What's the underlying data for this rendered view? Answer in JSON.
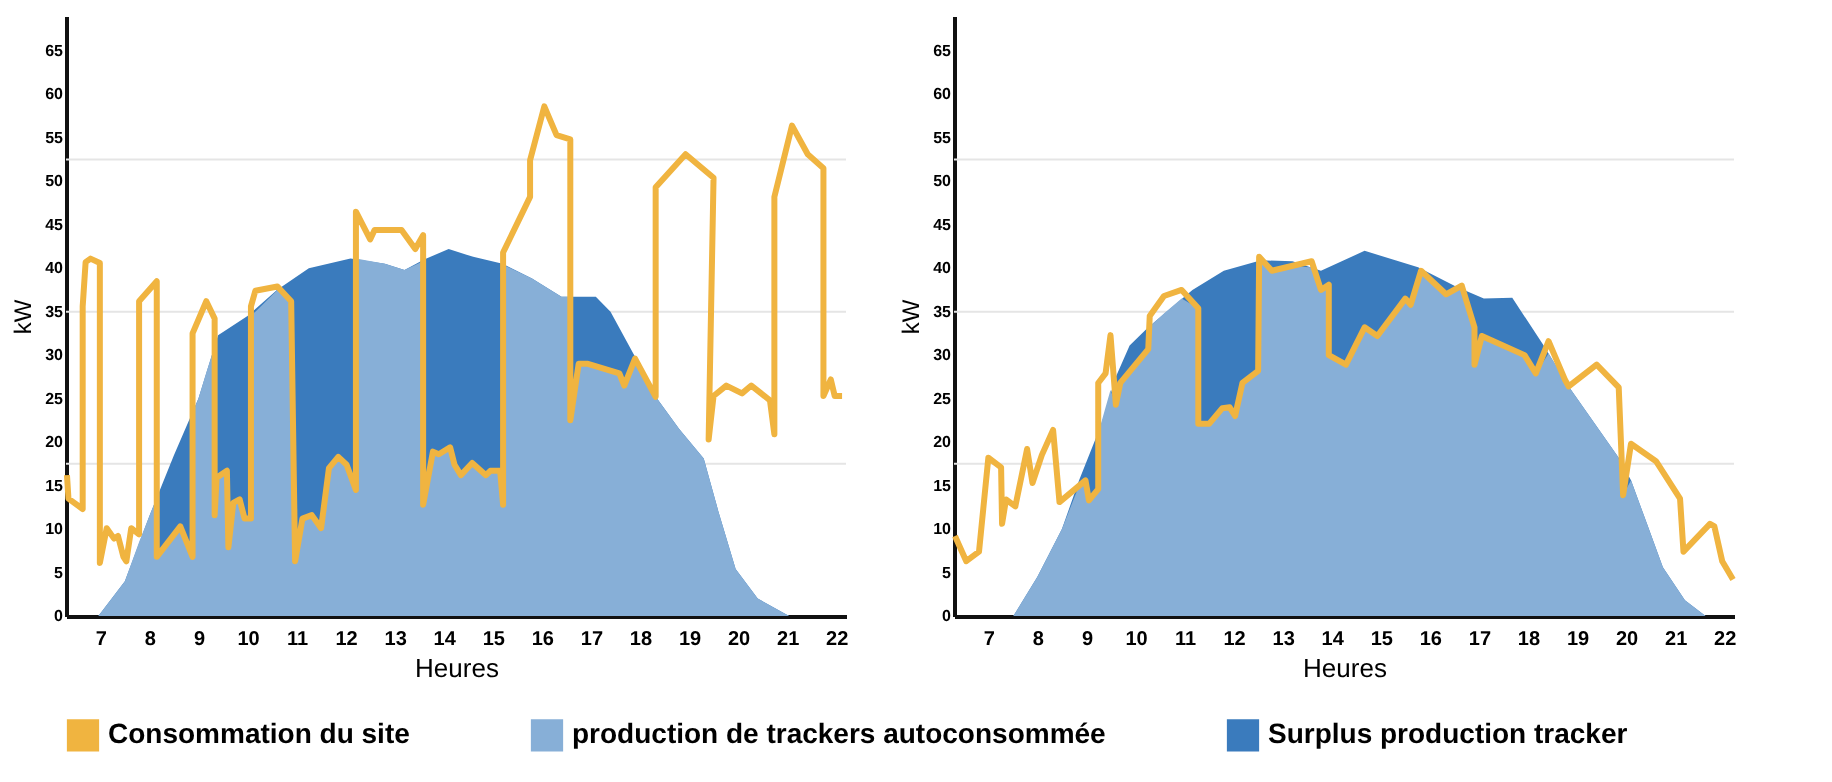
{
  "chart_data": [
    {
      "type": "area",
      "xlabel": "Heures",
      "ylabel": "kW",
      "xlim": [
        6.3,
        22.2
      ],
      "xticks": [
        7,
        8,
        9,
        10,
        11,
        12,
        13,
        14,
        15,
        16,
        17,
        18,
        19,
        20,
        21,
        22
      ],
      "ylim": [
        0,
        69
      ],
      "yticks": [
        0,
        5,
        10,
        15,
        20,
        25,
        30,
        35,
        40,
        45,
        50,
        55,
        60,
        65
      ],
      "grid": false,
      "legend": "bottom",
      "ref_lines": [
        {
          "axis": "y",
          "value": 17.5,
          "color": "#e5e5e5"
        },
        {
          "axis": "y",
          "value": 35,
          "color": "#e5e5e5"
        },
        {
          "axis": "y",
          "value": 52.5,
          "color": "#e5e5e5"
        }
      ],
      "series": [
        {
          "name": "Consommation du site",
          "type": "line",
          "color": "#f0b440",
          "x": [
            6.32,
            6.35,
            6.64,
            6.64,
            6.7,
            6.8,
            6.99,
            6.99,
            7.13,
            7.28,
            7.36,
            7.47,
            7.53,
            7.63,
            7.79,
            7.79,
            8.15,
            8.15,
            8.63,
            8.88,
            8.88,
            9.16,
            9.33,
            9.33,
            9.37,
            9.58,
            9.61,
            9.71,
            9.84,
            9.94,
            10.07,
            10.07,
            10.16,
            10.61,
            10.89,
            10.97,
            11.12,
            11.31,
            11.5,
            11.66,
            11.85,
            12.02,
            12.21,
            12.21,
            12.5,
            12.59,
            13.14,
            13.42,
            13.58,
            13.58,
            13.78,
            13.9,
            14.13,
            14.22,
            14.35,
            14.58,
            14.86,
            14.95,
            15.15,
            15.21,
            15.21,
            15.76,
            15.76,
            16.05,
            16.3,
            16.58,
            16.58,
            16.75,
            16.94,
            17.58,
            17.68,
            17.9,
            18.32,
            18.32,
            18.93,
            19.5,
            19.4,
            19.5,
            19.76,
            20.08,
            20.27,
            20.65,
            20.74,
            20.74,
            21.1,
            21.42,
            21.74,
            21.74,
            21.89,
            21.97,
            22.12
          ],
          "values": [
            16.2,
            13.5,
            12.3,
            35.6,
            40.7,
            41.1,
            40.6,
            6.1,
            10.1,
            8.9,
            9.2,
            6.8,
            6.3,
            10.1,
            9.4,
            36.2,
            38.5,
            6.8,
            10.3,
            6.8,
            32.5,
            36.2,
            34.2,
            11.6,
            15.9,
            16.7,
            7.9,
            13.0,
            13.4,
            11.2,
            11.2,
            35.6,
            37.4,
            37.9,
            36.2,
            6.3,
            11.2,
            11.6,
            10.1,
            17.0,
            18.3,
            17.4,
            14.5,
            46.5,
            43.3,
            44.4,
            44.4,
            42.2,
            43.8,
            12.8,
            18.9,
            18.6,
            19.4,
            17.4,
            16.2,
            17.6,
            16.2,
            16.7,
            16.7,
            12.8,
            41.8,
            48.2,
            52.4,
            58.6,
            55.3,
            54.8,
            22.5,
            29.0,
            29.0,
            27.9,
            26.5,
            29.6,
            25.2,
            49.3,
            53.1,
            50.4,
            20.3,
            25.3,
            26.5,
            25.6,
            26.5,
            24.8,
            20.9,
            48.2,
            56.4,
            53.1,
            51.5,
            25.3,
            27.2,
            25.3,
            25.3
          ]
        },
        {
          "name": "production de trackers autoconsommée",
          "color": "#87afd7",
          "x": [
            6.96,
            7.5,
            7.79,
            8.0,
            8.15,
            8.15,
            8.63,
            8.88,
            8.88,
            9.0,
            9.16,
            9.33,
            9.33,
            9.37,
            9.58,
            9.61,
            9.71,
            9.84,
            9.94,
            10.07,
            10.07,
            10.16,
            10.61,
            10.89,
            10.97,
            11.12,
            11.31,
            11.5,
            11.66,
            11.85,
            12.02,
            12.21,
            12.21,
            12.8,
            13.2,
            13.58,
            13.58,
            13.78,
            13.9,
            14.13,
            14.22,
            14.35,
            14.58,
            14.86,
            14.95,
            15.15,
            15.21,
            15.21,
            15.8,
            16.4,
            16.58,
            16.58,
            16.75,
            16.94,
            17.58,
            17.68,
            17.9,
            18.32,
            18.8,
            19.3,
            19.6,
            19.95,
            20.4,
            21.04
          ],
          "values": [
            0,
            4,
            8.5,
            11.5,
            13.6,
            6.8,
            10.3,
            6.8,
            23.4,
            25,
            28,
            31,
            11.6,
            15.9,
            16.7,
            7.9,
            13.0,
            13.4,
            11.2,
            11.2,
            34.6,
            35,
            37.5,
            36.2,
            6.3,
            11.2,
            11.6,
            10.1,
            17.0,
            18.3,
            17.4,
            14.5,
            41.1,
            40.5,
            39.8,
            40.8,
            12.8,
            18.9,
            18.6,
            19.4,
            17.4,
            16.2,
            17.6,
            16.2,
            16.7,
            16.7,
            12.8,
            40.4,
            38.8,
            36.7,
            36.7,
            22.5,
            29.0,
            29.0,
            27.9,
            26.5,
            29.6,
            25.2,
            21.5,
            18.1,
            12,
            5.4,
            2,
            0
          ]
        },
        {
          "name": "Surplus production tracker",
          "color": "#3a7bbd",
          "x": [
            6.96,
            7.5,
            8.0,
            8.5,
            9.0,
            9.4,
            10.0,
            10.6,
            11.25,
            12.1,
            12.8,
            13.2,
            13.6,
            14.1,
            14.6,
            15.2,
            15.8,
            16.4,
            17.1,
            17.4,
            17.9,
            18.3,
            18.8,
            19.3,
            19.6,
            19.95,
            20.4,
            21.04
          ],
          "values": [
            0,
            4,
            11.5,
            18.5,
            25,
            32.3,
            34.5,
            37.5,
            40,
            41.1,
            40.5,
            39.8,
            41,
            42.2,
            41.3,
            40.5,
            38.8,
            36.7,
            36.7,
            35,
            29.8,
            25.4,
            21.5,
            18.1,
            12,
            5.4,
            2,
            0
          ]
        }
      ]
    },
    {
      "type": "area",
      "xlabel": "Heures",
      "ylabel": "kW",
      "xlim": [
        6.3,
        22.2
      ],
      "xticks": [
        7,
        8,
        9,
        10,
        11,
        12,
        13,
        14,
        15,
        16,
        17,
        18,
        19,
        20,
        21,
        22
      ],
      "ylim": [
        0,
        69
      ],
      "yticks": [
        0,
        5,
        10,
        15,
        20,
        25,
        30,
        35,
        40,
        45,
        50,
        55,
        60,
        65
      ],
      "grid": false,
      "ref_lines": [
        {
          "axis": "y",
          "value": 17.5,
          "color": "#e5e5e5"
        },
        {
          "axis": "y",
          "value": 35,
          "color": "#e5e5e5"
        },
        {
          "axis": "y",
          "value": 52.5,
          "color": "#e5e5e5"
        }
      ],
      "series": [
        {
          "name": "Consommation du site",
          "type": "line",
          "color": "#f0b440",
          "x": [
            6.32,
            6.55,
            6.81,
            7.0,
            7.26,
            7.28,
            7.36,
            7.55,
            7.79,
            7.9,
            8.09,
            8.32,
            8.45,
            8.98,
            9.05,
            9.24,
            9.24,
            9.39,
            9.49,
            9.6,
            9.69,
            10.26,
            10.29,
            10.58,
            10.94,
            11.28,
            11.28,
            11.5,
            11.77,
            11.92,
            12.03,
            12.18,
            12.5,
            12.52,
            12.78,
            13.59,
            13.78,
            13.94,
            13.94,
            14.29,
            14.67,
            14.93,
            15.5,
            15.61,
            15.82,
            16.33,
            16.65,
            16.91,
            16.91,
            17.06,
            17.93,
            18.16,
            18.42,
            18.76,
            18.83,
            19.4,
            19.85,
            19.94,
            20.1,
            20.61,
            21.1,
            21.17,
            21.71,
            21.8,
            21.96,
            22.18
          ],
          "values": [
            9.2,
            6.3,
            7.4,
            18.2,
            17.1,
            10.6,
            13.4,
            12.6,
            19.2,
            15.3,
            18.5,
            21.4,
            13.1,
            15.6,
            13.3,
            14.6,
            26.8,
            27.9,
            32.3,
            24.3,
            26.8,
            30.7,
            34.5,
            36.8,
            37.5,
            35.4,
            22.1,
            22.1,
            23.9,
            24.0,
            23.0,
            26.8,
            28.2,
            41.3,
            39.7,
            40.8,
            37.5,
            38.1,
            30.0,
            28.9,
            33.2,
            32.2,
            36.5,
            35.8,
            39.7,
            37.0,
            38.0,
            33.2,
            28.9,
            32.2,
            30.0,
            27.9,
            31.6,
            27.1,
            26.4,
            28.9,
            26.3,
            13.9,
            19.8,
            17.8,
            13.5,
            7.4,
            10.6,
            10.3,
            6.3,
            4.2
          ]
        },
        {
          "name": "production de trackers autoconsommée",
          "color": "#87afd7",
          "x": [
            7.51,
            8.0,
            8.5,
            8.85,
            8.98,
            9.05,
            9.24,
            9.24,
            9.39,
            9.49,
            9.6,
            9.69,
            10.26,
            10.29,
            10.58,
            10.94,
            11.28,
            11.28,
            11.5,
            11.77,
            11.92,
            12.03,
            12.18,
            12.5,
            12.52,
            12.78,
            13.2,
            13.59,
            13.78,
            13.94,
            13.94,
            14.29,
            14.67,
            14.93,
            15.5,
            15.61,
            15.82,
            16.33,
            16.65,
            16.91,
            16.91,
            17.06,
            17.93,
            18.16,
            18.42,
            18.76,
            18.83,
            19.85,
            19.94,
            20.1,
            20.4,
            20.75,
            21.2,
            21.62
          ],
          "values": [
            0,
            4.5,
            10,
            15,
            15.6,
            13.3,
            14.6,
            21,
            24,
            26,
            24.3,
            26.8,
            30.7,
            33.3,
            34.8,
            36.5,
            35.4,
            22.1,
            22.1,
            23.9,
            24.0,
            23.0,
            26.8,
            28.2,
            40.9,
            39.7,
            40.2,
            40.1,
            37.5,
            38.1,
            30.0,
            28.9,
            33.2,
            32.2,
            36.5,
            35.8,
            39.7,
            37.0,
            37.6,
            33.2,
            28.9,
            32.2,
            30.0,
            27.9,
            30.2,
            27.1,
            26.4,
            18.2,
            13.9,
            15.6,
            11,
            5.6,
            1.8,
            0
          ]
        },
        {
          "name": "Surplus production tracker",
          "color": "#3a7bbd",
          "x": [
            7.51,
            8.0,
            8.5,
            8.85,
            9.3,
            9.6,
            9.88,
            10.26,
            11.16,
            11.8,
            12.56,
            13.2,
            13.78,
            14.67,
            15.76,
            16.53,
            17.1,
            17.68,
            18.32,
            18.83,
            19.85,
            20.1,
            20.4,
            20.75,
            21.2,
            21.62
          ],
          "values": [
            0,
            4.5,
            10,
            15.6,
            22,
            27.5,
            31.1,
            33.2,
            37.5,
            39.7,
            40.9,
            40.8,
            39.7,
            42,
            40.1,
            37.9,
            36.5,
            36.6,
            31.1,
            26.4,
            18.2,
            15.6,
            11,
            5.6,
            1.8,
            0
          ]
        }
      ]
    }
  ]
}
